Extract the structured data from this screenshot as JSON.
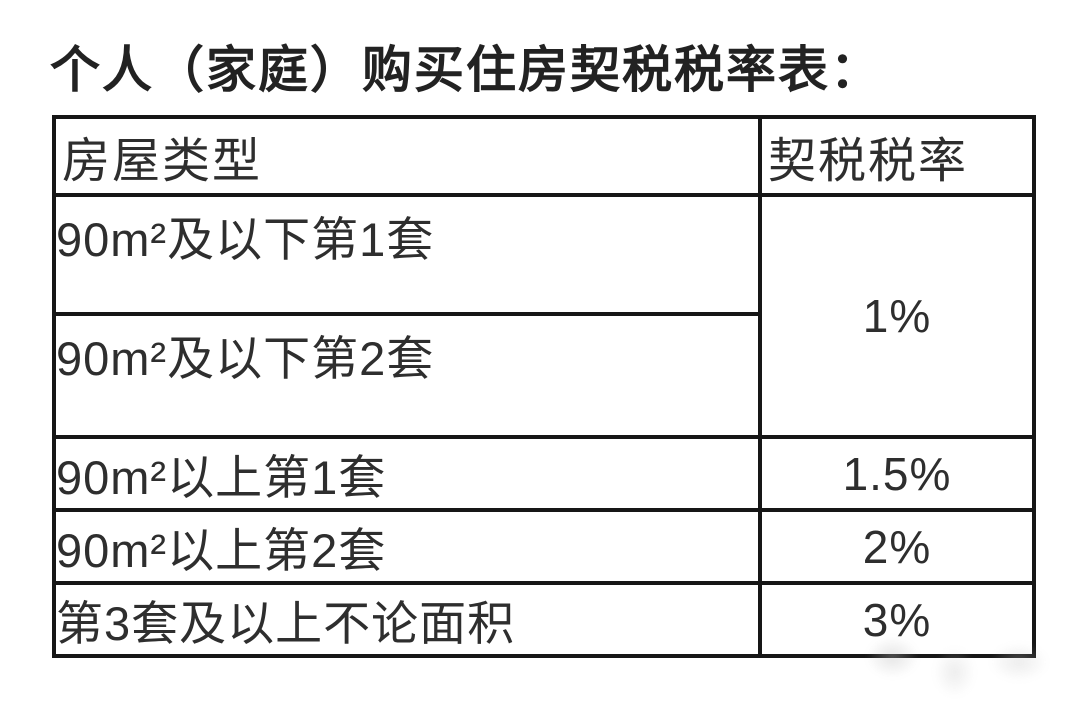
{
  "page": {
    "title": "个人（家庭）购买住房契税税率表："
  },
  "table": {
    "headers": {
      "house_type": "房屋类型",
      "tax_rate": "契税税率"
    },
    "rows": [
      {
        "house_type": "90m²及以下第1套",
        "tax_rate": "1%"
      },
      {
        "house_type": "90m²及以下第2套"
      },
      {
        "house_type": "90m²以上第1套",
        "tax_rate": "1.5%"
      },
      {
        "house_type": "90m²以上第2套",
        "tax_rate": "2%"
      },
      {
        "house_type": "第3套及以上不论面积",
        "tax_rate": "3%"
      }
    ]
  },
  "chart_data": {
    "type": "table",
    "title": "个人（家庭）购买住房契税税率表",
    "columns": [
      "房屋类型",
      "契税税率"
    ],
    "rows": [
      [
        "90m²及以下第1套",
        "1%"
      ],
      [
        "90m²及以下第2套",
        "1%"
      ],
      [
        "90m²以上第1套",
        "1.5%"
      ],
      [
        "90m²以上第2套",
        "2%"
      ],
      [
        "第3套及以上不论面积",
        "3%"
      ]
    ],
    "notes": "契税税率 cell for the first two rows is a single merged cell showing 1%"
  },
  "colors": {
    "background": "#ffffff",
    "text": "#2e2e2e",
    "border": "#161616"
  }
}
